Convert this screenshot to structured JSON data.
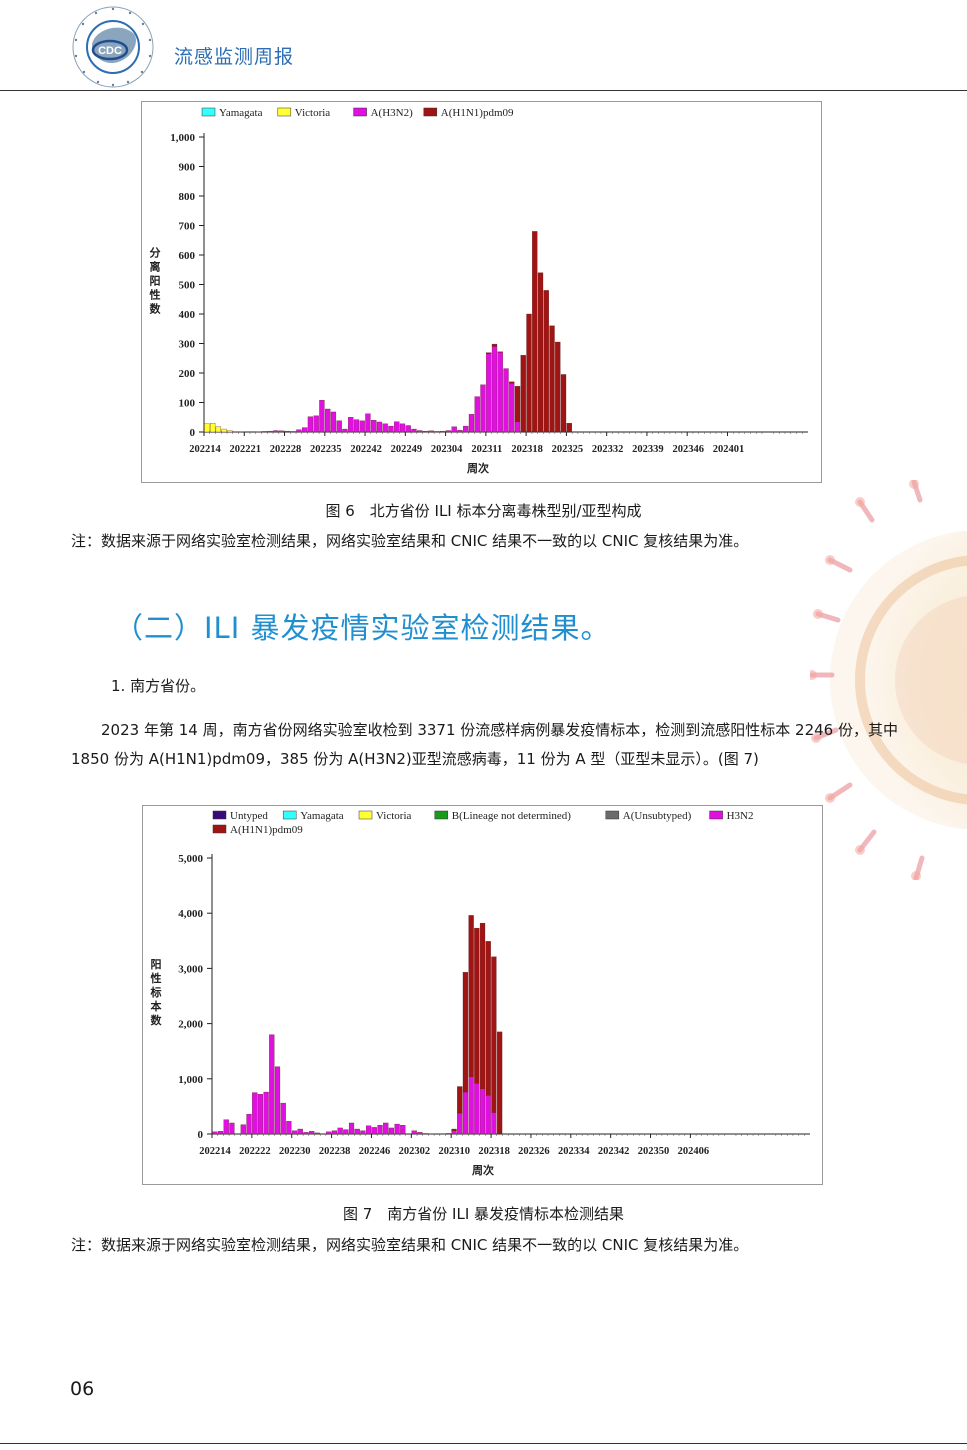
{
  "header": {
    "title": "流感监测周报",
    "logo_text": "CDC",
    "logo_ring_text": "中国疾病预防控制中心 CHINESE CENTER FOR DISEASE CONTROL AND PREVENTION"
  },
  "figure6": {
    "caption": "图 6　北方省份 ILI 标本分离毒株型别/亚型构成",
    "note": "注：数据来源于网络实验室检测结果，网络实验室结果和 CNIC 结果不一致的以 CNIC 复核结果为准。"
  },
  "section": {
    "heading": "（二）ILI 暴发疫情实验室检测结果。",
    "sub_heading": "1. 南方省份。",
    "paragraph": "2023 年第 14 周，南方省份网络实验室收检到 3371 份流感样病例暴发疫情标本，检测到流感阳性标本 2246 份，其中 1850 份为 A(H1N1)pdm09，385 份为 A(H3N2)亚型流感病毒，11 份为 A 型（亚型未显示）。(图 7)"
  },
  "figure7": {
    "caption": "图 7　南方省份 ILI 暴发疫情标本检测结果",
    "note": "注：数据来源于网络实验室检测结果，网络实验室结果和 CNIC 结果不一致的以 CNIC 复核结果为准。"
  },
  "page_number": "06",
  "colors": {
    "header_blue": "#2c6db5",
    "heading_blue": "#1f8fd0",
    "h1n1": "#a01414",
    "h3n2": "#e010e0",
    "victoria": "#ffff33",
    "yamagata": "#33ffff",
    "untyped": "#3a0a78",
    "b_lineage": "#1a9a1a",
    "a_unsubtyped": "#6b6b6b"
  },
  "chart_data": [
    {
      "type": "bar",
      "stacked": true,
      "ylabel": "分离阳性数",
      "xlabel": "周次",
      "ylim": [
        0,
        1000
      ],
      "yticks": [
        "0",
        "100",
        "200",
        "300",
        "400",
        "500",
        "600",
        "700",
        "800",
        "900",
        "1,000"
      ],
      "tick_labels": [
        "202214",
        "202221",
        "202228",
        "202235",
        "202242",
        "202249",
        "202304",
        "202311",
        "202318",
        "202325",
        "202332",
        "202339",
        "202346",
        "202401"
      ],
      "legend": [
        "Yamagata",
        "Victoria",
        "A(H3N2)",
        "A(H1N1)pdm09"
      ],
      "legend_placement": "top",
      "num_weeks": 105,
      "series": [
        {
          "name": "Victoria",
          "color": "#ffff33",
          "start_index": 0,
          "values": [
            28,
            30,
            18,
            10,
            5,
            2,
            1
          ]
        },
        {
          "name": "A(H3N2)",
          "color": "#e010e0",
          "start_index": 9,
          "values": [
            1,
            2,
            3,
            5,
            4,
            3,
            2,
            8,
            15,
            52,
            55,
            108,
            78,
            68,
            38,
            10,
            50,
            42,
            38,
            62,
            40,
            34,
            28,
            20,
            35,
            28,
            22,
            10,
            5,
            3,
            4,
            2,
            3,
            5,
            18,
            6,
            20,
            60,
            120,
            160,
            265,
            290,
            270,
            215,
            165,
            35
          ]
        },
        {
          "name": "A(H1N1)pdm09",
          "color": "#a01414",
          "start_index": 49,
          "values": [
            4,
            8,
            2,
            0,
            5,
            120,
            260,
            400,
            680,
            540,
            480,
            360,
            305,
            195,
            30
          ]
        }
      ]
    },
    {
      "type": "bar",
      "stacked": true,
      "ylabel": "阳性标本数",
      "xlabel": "周次",
      "ylim": [
        0,
        5000
      ],
      "yticks": [
        "0",
        "1,000",
        "2,000",
        "3,000",
        "4,000",
        "5,000"
      ],
      "tick_labels": [
        "202214",
        "202222",
        "202230",
        "202238",
        "202246",
        "202302",
        "202310",
        "202318",
        "202326",
        "202334",
        "202342",
        "202350",
        "202406"
      ],
      "legend": [
        "Untyped",
        "Yamagata",
        "Victoria",
        "B(Lineage not determined)",
        "A(Unsubtyped)",
        "H3N2",
        "A(H1N1)pdm09"
      ],
      "legend_placement": "top",
      "num_weeks": 105,
      "series": [
        {
          "name": "H3N2",
          "color": "#e010e0",
          "start_index": 0,
          "values": [
            40,
            50,
            260,
            200,
            0,
            170,
            360,
            750,
            720,
            760,
            1800,
            1220,
            560,
            230,
            60,
            90,
            30,
            50,
            20,
            0,
            40,
            60,
            110,
            80,
            200,
            90,
            60,
            150,
            120,
            160,
            200,
            110,
            180,
            160,
            0,
            60,
            30,
            10,
            5,
            0,
            0,
            0,
            60,
            380,
            760,
            1040,
            920,
            820,
            700,
            390
          ]
        },
        {
          "name": "A(H1N1)pdm09",
          "color": "#a01414",
          "start_index": 41,
          "values": [
            10,
            30,
            480,
            2170,
            2920,
            2810,
            3000,
            2790,
            2820,
            1850
          ]
        }
      ]
    }
  ]
}
